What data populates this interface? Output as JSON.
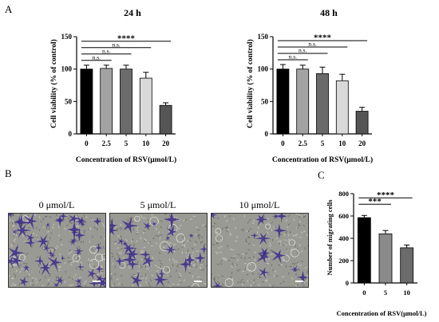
{
  "panels": {
    "A": "A",
    "B": "B",
    "C": "C"
  },
  "micrographs": [
    {
      "label": "0 μmol/L",
      "density": 1.0
    },
    {
      "label": "5 μmol/L",
      "density": 0.55
    },
    {
      "label": "10 μmol/L",
      "density": 0.3
    }
  ],
  "colors": {
    "black": "#000000",
    "bar_dark_gray": "#6b6b6b",
    "bar_gray": "#8a8a8a",
    "bar_light": "#d9d9d9",
    "bar_mid": "#a3a3a3",
    "micro_bg": "#9a9a94",
    "cell_purple": "#3b2a8c"
  },
  "chart_data": [
    {
      "type": "bar",
      "title": "24 h",
      "categories": [
        "0",
        "2.5",
        "5",
        "10",
        "20"
      ],
      "values": [
        100,
        101,
        100,
        86,
        44
      ],
      "errors": [
        6,
        5,
        6,
        9,
        4
      ],
      "xlabel": "Concentration of RSV(μmol/L)",
      "ylabel": "Cell viability (% of control)",
      "ylim": [
        0,
        150
      ],
      "yticks": [
        "0",
        "50",
        "100",
        "150"
      ],
      "bar_colors": [
        "#000000",
        "#a3a3a3",
        "#6b6b6b",
        "#d9d9d9",
        "#555555"
      ],
      "annotations": [
        {
          "text": "n.s.",
          "from": 0,
          "to": 1
        },
        {
          "text": "n.s.",
          "from": 0,
          "to": 2
        },
        {
          "text": "n.s.",
          "from": 0,
          "to": 3
        },
        {
          "text": "****",
          "from": 0,
          "to": 4
        }
      ]
    },
    {
      "type": "bar",
      "title": "48 h",
      "categories": [
        "0",
        "2.5",
        "5",
        "10",
        "20"
      ],
      "values": [
        100,
        100,
        93,
        82,
        35
      ],
      "errors": [
        7,
        6,
        10,
        10,
        6
      ],
      "xlabel": "Concentration of RSV(μmol/L)",
      "ylabel": "Cell viability (% of control)",
      "ylim": [
        0,
        150
      ],
      "yticks": [
        "0",
        "50",
        "100",
        "150"
      ],
      "bar_colors": [
        "#000000",
        "#a3a3a3",
        "#6b6b6b",
        "#d9d9d9",
        "#555555"
      ],
      "annotations": [
        {
          "text": "n.s.",
          "from": 0,
          "to": 1
        },
        {
          "text": "n.s.",
          "from": 0,
          "to": 2
        },
        {
          "text": "n.s.",
          "from": 0,
          "to": 3
        },
        {
          "text": "****",
          "from": 0,
          "to": 4
        }
      ]
    },
    {
      "type": "bar",
      "title": "",
      "categories": [
        "0",
        "5",
        "10"
      ],
      "values": [
        585,
        440,
        315
      ],
      "errors": [
        20,
        30,
        25
      ],
      "xlabel": "Concentration of RSV(μmol/L)",
      "ylabel": "Number of migrating cells",
      "ylim": [
        0,
        800
      ],
      "yticks": [
        "0",
        "200",
        "400",
        "600",
        "800"
      ],
      "bar_colors": [
        "#000000",
        "#8a8a8a",
        "#6b6b6b"
      ],
      "annotations": [
        {
          "text": "***",
          "from": 0,
          "to": 1
        },
        {
          "text": "****",
          "from": 0,
          "to": 2
        }
      ]
    }
  ]
}
